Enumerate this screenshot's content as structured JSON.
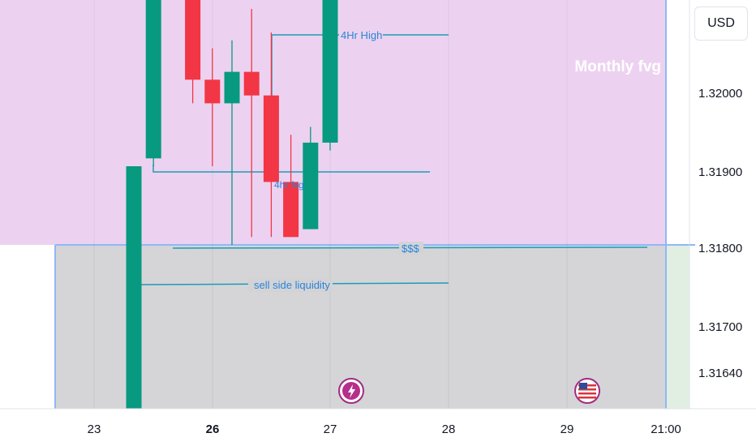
{
  "currency_label": "USD",
  "colors": {
    "bull": "#089981",
    "bear": "#f23645",
    "fvg_zone": "#ecd2f0",
    "liquidity_zone": "#d3d3d6",
    "zone_border": "#8fb8f5",
    "annotation": "#1e88e5",
    "right_zone": "#e1efe3"
  },
  "chart_data": {
    "type": "candlestick",
    "y_axis": {
      "ticks": [
        "1.31640",
        "1.31700",
        "1.31800",
        "1.31900",
        "1.32000"
      ],
      "range": [
        1.3155,
        1.324
      ]
    },
    "x_axis": {
      "ticks": [
        "23",
        "26",
        "27",
        "28",
        "29",
        "21:00"
      ],
      "bold_tick": "26"
    },
    "candles": [
      {
        "open": 1.3155,
        "high": 1.319,
        "low": 1.3155,
        "close": 1.319
      },
      {
        "open": 1.3191,
        "high": 1.324,
        "low": 1.319,
        "close": 1.324
      },
      {
        "open": 1.324,
        "high": 1.324,
        "low": 1.3215,
        "close": 1.324
      },
      {
        "open": 1.324,
        "high": 1.324,
        "low": 1.3198,
        "close": 1.3201
      },
      {
        "open": 1.3201,
        "high": 1.3205,
        "low": 1.319,
        "close": 1.3198
      },
      {
        "open": 1.3198,
        "high": 1.3206,
        "low": 1.318,
        "close": 1.3202
      },
      {
        "open": 1.3202,
        "high": 1.321,
        "low": 1.3181,
        "close": 1.3199
      },
      {
        "open": 1.3199,
        "high": 1.3207,
        "low": 1.3181,
        "close": 1.3188
      },
      {
        "open": 1.3188,
        "high": 1.3194,
        "low": 1.3181,
        "close": 1.3181
      },
      {
        "open": 1.3182,
        "high": 1.3195,
        "low": 1.3182,
        "close": 1.3193
      },
      {
        "open": 1.3193,
        "high": 1.324,
        "low": 1.3192,
        "close": 1.324
      }
    ],
    "zones": [
      {
        "name": "Monthly fvg",
        "from": 1.318,
        "to": 1.324
      },
      {
        "name": "$$$",
        "from": 1.3155,
        "to": 1.318
      }
    ],
    "annotations": [
      {
        "text": "4Hr High",
        "price": 1.3207
      },
      {
        "text": "4hr fvg",
        "price": 1.319
      },
      {
        "text": "$$$",
        "price": 1.318
      },
      {
        "text": "sell side liquidity",
        "price": 1.3175
      }
    ]
  }
}
